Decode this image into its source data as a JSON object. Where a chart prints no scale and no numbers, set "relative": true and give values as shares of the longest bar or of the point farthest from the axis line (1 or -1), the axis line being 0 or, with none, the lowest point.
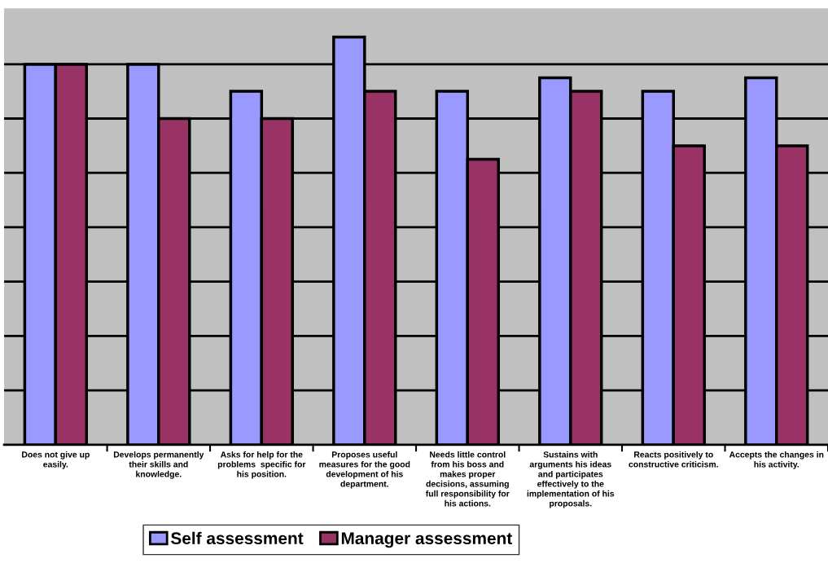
{
  "chart_data": {
    "type": "bar",
    "relative": true,
    "grid": "y",
    "legend": "bottom",
    "categories": [
      "Does not give up easily.",
      "Develops permanently their skills and knowledge.",
      "Asks for help for the problems  specific for his position.",
      "Proposes useful measures for the good development of his department.",
      "Needs little control from his boss and makes proper decisions, assuming full responsibility for his actions.",
      "Sustains with arguments his ideas and participates effectively to the implementation of his proposals.",
      "Reacts positively to constructive criticism.",
      "Accepts the changes in his activity."
    ],
    "series": [
      {
        "name": "Self assessment",
        "color": "#9999ff",
        "values": [
          0.933,
          0.933,
          0.867,
          1,
          0.867,
          0.9,
          0.867,
          0.9
        ]
      },
      {
        "name": "Manager assessment",
        "color": "#993366",
        "values": [
          0.933,
          0.8,
          0.8,
          0.867,
          0.7,
          0.867,
          0.733,
          0.733
        ]
      }
    ]
  }
}
